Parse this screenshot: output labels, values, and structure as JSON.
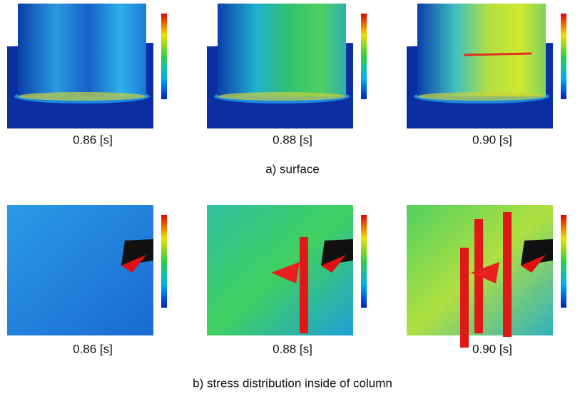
{
  "figure": {
    "rows": [
      {
        "captions": [
          "0.86 [s]",
          "0.88 [s]",
          "0.90 [s]"
        ],
        "label": "a) surface"
      },
      {
        "captions": [
          "0.86 [s]",
          "0.88 [s]",
          "0.90 [s]"
        ],
        "label": "b) stress distribution inside of column"
      }
    ]
  }
}
